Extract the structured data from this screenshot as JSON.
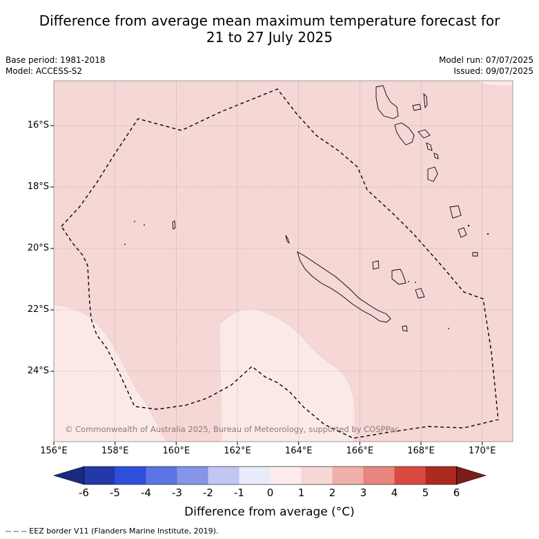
{
  "title_line1": "Difference from average mean maximum temperature forecast for",
  "title_line2": "21 to 27 July 2025",
  "meta_left": [
    "Base period: 1981-2018",
    "Model: ACCESS-S2"
  ],
  "meta_right": [
    "Model run: 07/07/2025",
    "Issued: 09/07/2025"
  ],
  "map": {
    "lon_range": [
      156.0,
      171.0
    ],
    "lat_range": [
      -26.2,
      -14.7
    ],
    "lon_ticks": [
      "156°E",
      "158°E",
      "160°E",
      "162°E",
      "164°E",
      "166°E",
      "168°E",
      "170°E"
    ],
    "lat_ticks": [
      "16°S",
      "18°S",
      "20°S",
      "22°S",
      "24°S"
    ],
    "grid": true,
    "region_fill_0_1": "#f5d7d5",
    "region_fill_1_2_named_0_1": "#fbe9e7",
    "dominant_anomaly_band": "1 to 2",
    "secondary_anomaly_band": "0 to 1",
    "copyright": "© Commonwealth of Australia 2025, Bureau of Meteorology, supported by COSPPac"
  },
  "colorbar": {
    "ticks": [
      "-6",
      "-5",
      "-4",
      "-3",
      "-2",
      "-1",
      "0",
      "1",
      "2",
      "3",
      "4",
      "5",
      "6"
    ],
    "colors": [
      "#2339a9",
      "#2f4fdb",
      "#5a74e2",
      "#8595e8",
      "#c1c7f2",
      "#e8ebfa",
      "#fdeceb",
      "#f5d7d5",
      "#efb0ab",
      "#e7857e",
      "#da4a40",
      "#ad2a21"
    ],
    "low_extend_color": "#1a2a80",
    "high_extend_color": "#7a1e17",
    "label": "Difference from average (°C)"
  },
  "footer": "--  --  -- EEZ border V11 (Flanders Marine Institute, 2019)."
}
